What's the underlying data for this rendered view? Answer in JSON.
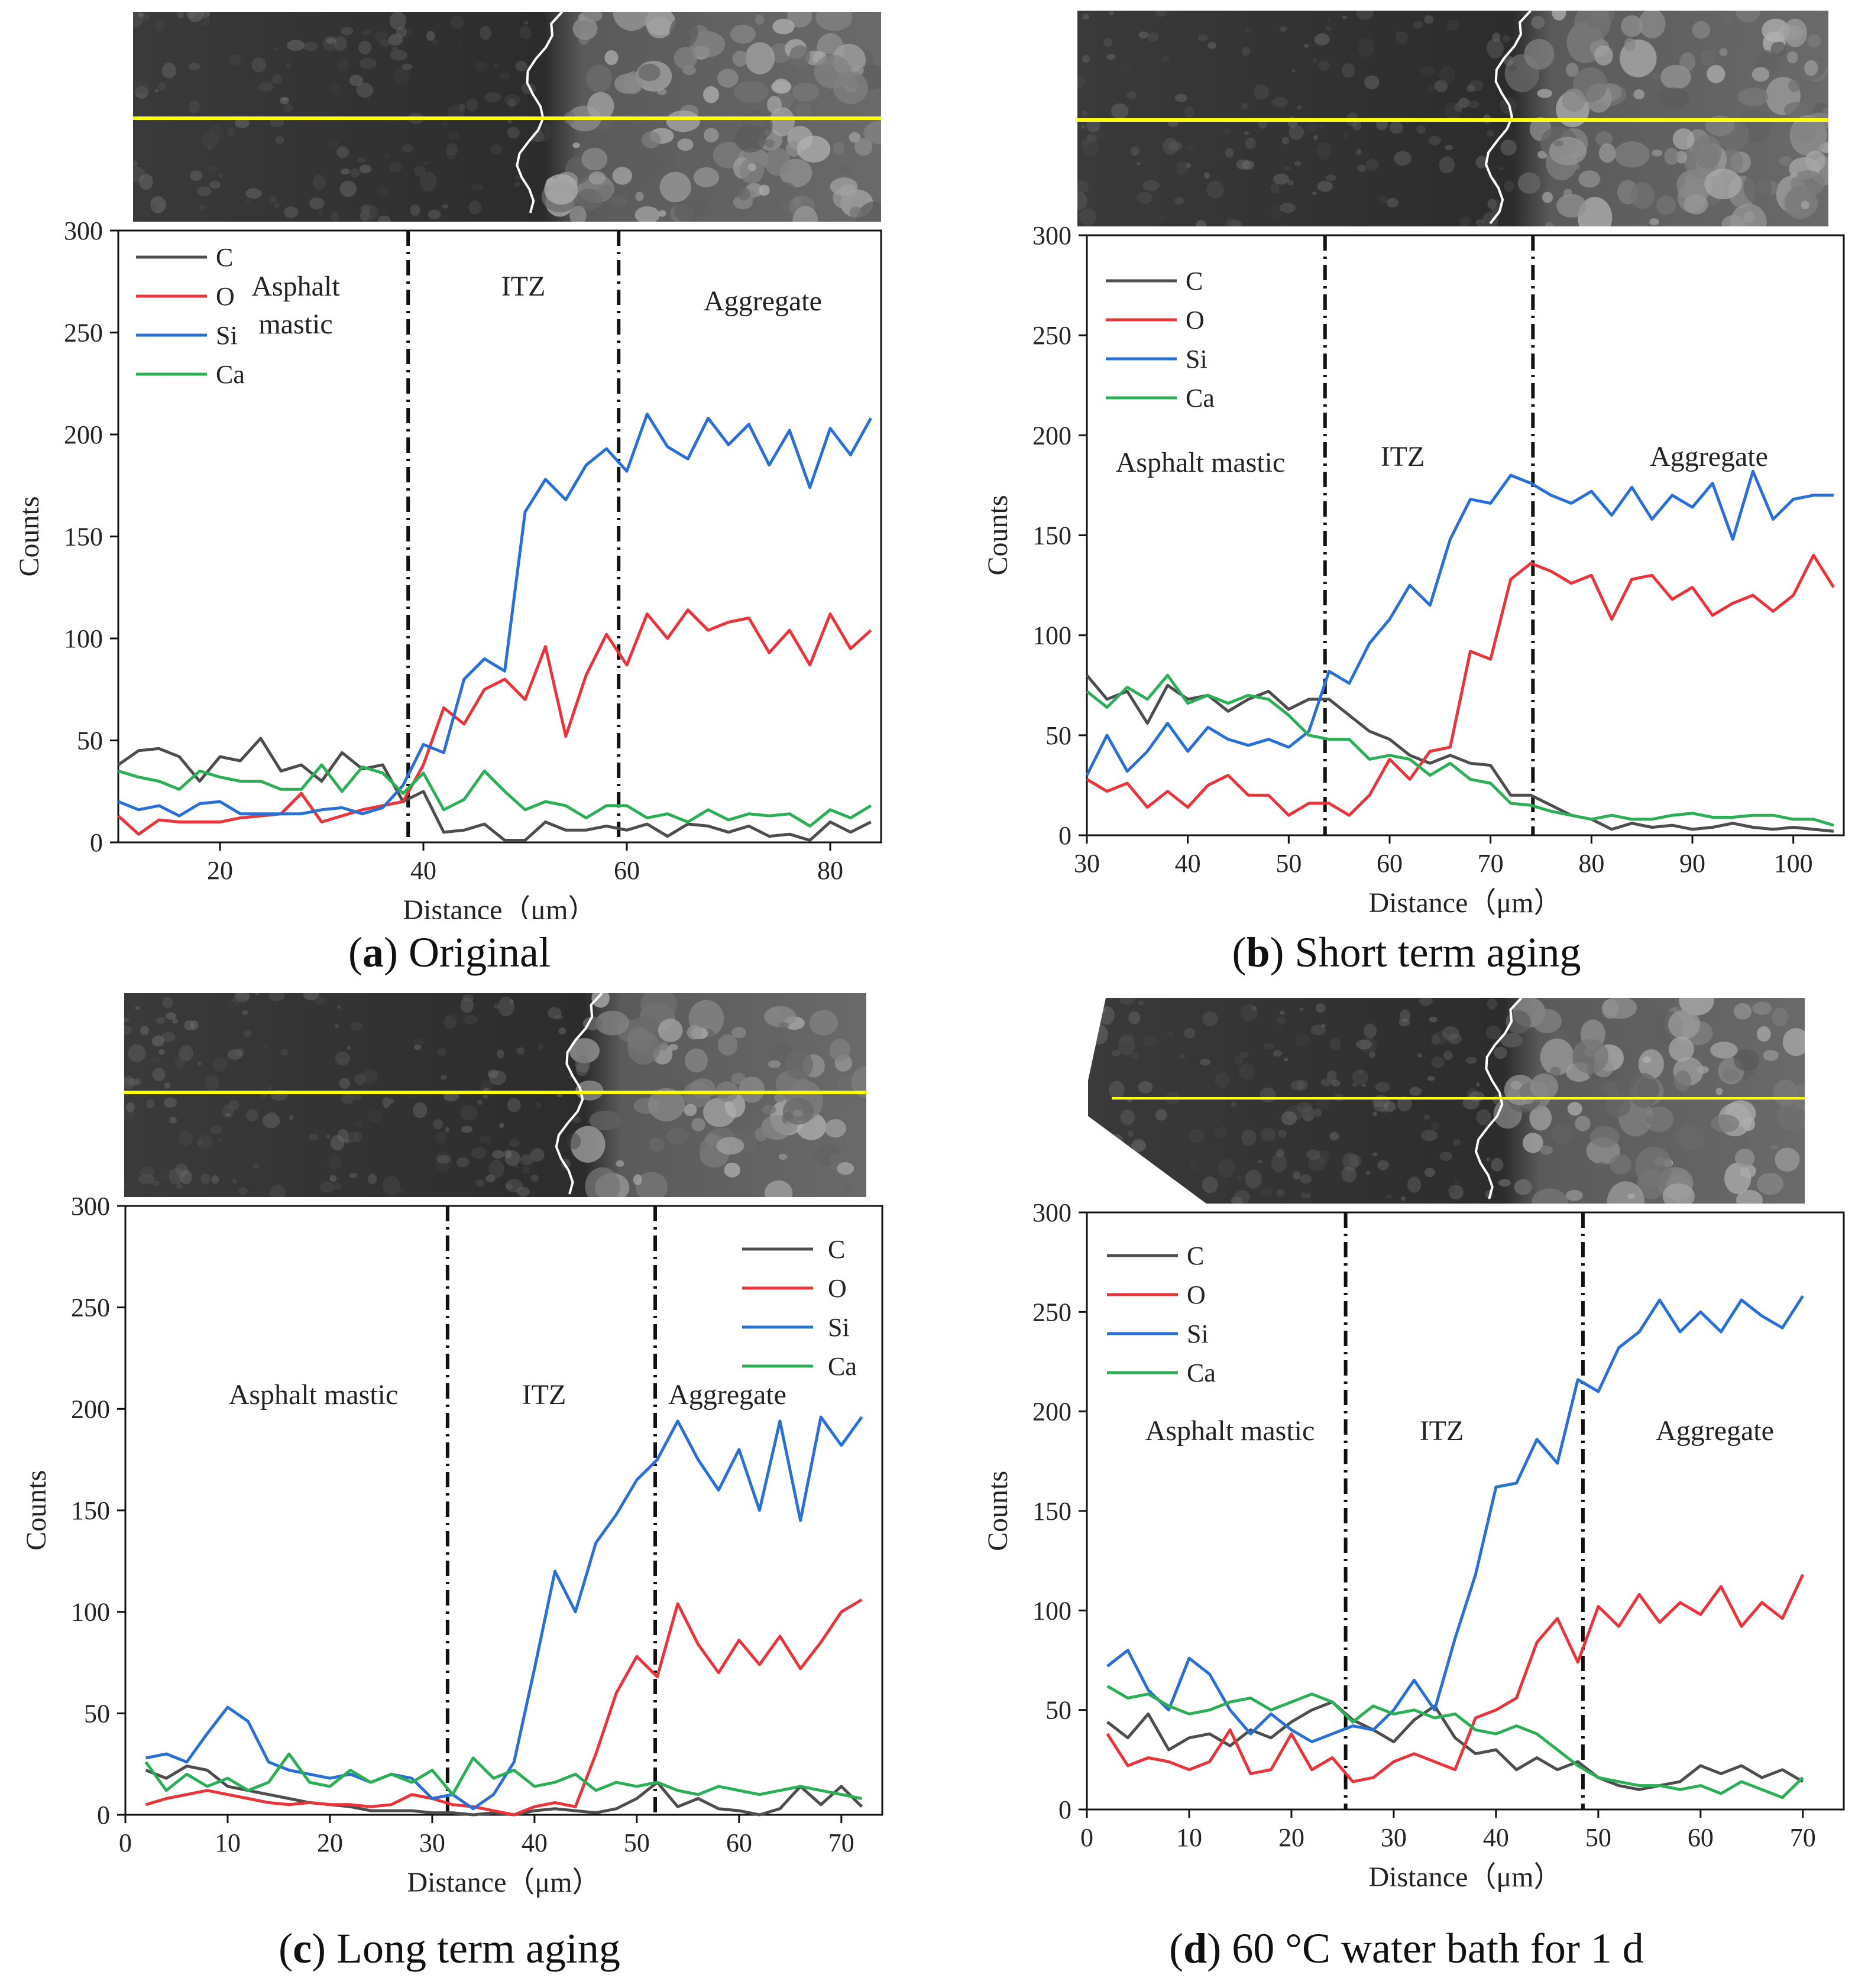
{
  "colors": {
    "C": "#4d4d4d",
    "O": "#e8343a",
    "Si": "#2a6fd6",
    "Ca": "#2cae56",
    "scan_line": "#ffff00",
    "interface_line": "#ffffff"
  },
  "legend": {
    "items": [
      "C",
      "O",
      "Si",
      "Ca"
    ]
  },
  "panels": [
    {
      "id": "a",
      "caption_letter": "a",
      "caption_text": " Original",
      "chart_data": {
        "type": "line",
        "title": "Original",
        "xlabel": "Distance（μm）",
        "ylabel": "Counts",
        "xlim": [
          10,
          85
        ],
        "ylim": [
          0,
          300
        ],
        "xticks": [
          20,
          40,
          60,
          80
        ],
        "yticks": [
          0,
          50,
          100,
          150,
          200,
          250,
          300
        ],
        "zone_boundaries": [
          38.5,
          59.2
        ],
        "zones": [
          "Asphalt mastic",
          "ITZ",
          "Aggregate"
        ],
        "legend_position": "top-left",
        "x": [
          10,
          12,
          14,
          16,
          18,
          20,
          22,
          24,
          26,
          28,
          30,
          32,
          34,
          36,
          38,
          40,
          42,
          44,
          46,
          48,
          50,
          52,
          54,
          56,
          58,
          60,
          62,
          64,
          66,
          68,
          70,
          72,
          74,
          76,
          78,
          80,
          82,
          84
        ],
        "series": [
          {
            "name": "C",
            "values": [
              38,
              45,
              46,
              42,
              30,
              42,
              40,
              51,
              35,
              38,
              30,
              44,
              36,
              38,
              20,
              25,
              5,
              6,
              9,
              1,
              1,
              10,
              6,
              6,
              8,
              6,
              9,
              3,
              9,
              8,
              5,
              8,
              3,
              4,
              1,
              10,
              5,
              10
            ]
          },
          {
            "name": "O",
            "values": [
              13,
              4,
              11,
              10,
              10,
              10,
              12,
              13,
              14,
              24,
              10,
              13,
              16,
              18,
              20,
              38,
              66,
              58,
              75,
              80,
              70,
              96,
              52,
              82,
              102,
              87,
              112,
              100,
              114,
              104,
              108,
              110,
              93,
              104,
              87,
              112,
              95,
              104
            ]
          },
          {
            "name": "Si",
            "values": [
              20,
              16,
              18,
              13,
              19,
              20,
              14,
              14,
              14,
              14,
              16,
              17,
              14,
              17,
              28,
              48,
              44,
              80,
              90,
              84,
              162,
              178,
              168,
              185,
              193,
              182,
              210,
              194,
              188,
              208,
              195,
              205,
              185,
              202,
              174,
              203,
              190,
              208
            ]
          },
          {
            "name": "Ca",
            "values": [
              35,
              32,
              30,
              26,
              35,
              32,
              30,
              30,
              26,
              26,
              38,
              25,
              37,
              34,
              24,
              34,
              16,
              21,
              35,
              25,
              16,
              20,
              18,
              12,
              18,
              18,
              12,
              14,
              10,
              16,
              11,
              14,
              13,
              14,
              8,
              16,
              12,
              18
            ]
          }
        ]
      }
    },
    {
      "id": "b",
      "caption_letter": "b",
      "caption_text": " Short term aging",
      "chart_data": {
        "type": "line",
        "title": "Short term aging",
        "xlabel": "Distance（μm）",
        "ylabel": "Counts",
        "xlim": [
          30,
          105
        ],
        "ylim": [
          0,
          300
        ],
        "xticks": [
          30,
          40,
          50,
          60,
          70,
          80,
          90,
          100
        ],
        "yticks": [
          0,
          50,
          100,
          150,
          200,
          250,
          300
        ],
        "zone_boundaries": [
          53.6,
          74.2
        ],
        "zones": [
          "Asphalt mastic",
          "ITZ",
          "Aggregate"
        ],
        "legend_position": "top-left",
        "x": [
          30,
          32,
          34,
          36,
          38,
          40,
          42,
          44,
          46,
          48,
          50,
          52,
          54,
          56,
          58,
          60,
          62,
          64,
          66,
          68,
          70,
          72,
          74,
          76,
          78,
          80,
          82,
          84,
          86,
          88,
          90,
          92,
          94,
          96,
          98,
          100,
          102,
          104
        ],
        "series": [
          {
            "name": "C",
            "values": [
              80,
              68,
              72,
              56,
              75,
              68,
              70,
              62,
              68,
              72,
              63,
              68,
              68,
              60,
              52,
              48,
              40,
              36,
              40,
              36,
              35,
              20,
              20,
              15,
              10,
              8,
              3,
              6,
              4,
              5,
              3,
              4,
              6,
              4,
              3,
              4,
              3,
              2
            ]
          },
          {
            "name": "O",
            "values": [
              28,
              22,
              26,
              14,
              22,
              14,
              25,
              30,
              20,
              20,
              10,
              16,
              16,
              10,
              20,
              38,
              28,
              42,
              44,
              92,
              88,
              128,
              136,
              132,
              126,
              130,
              108,
              128,
              130,
              118,
              124,
              110,
              116,
              120,
              112,
              120,
              140,
              124
            ]
          },
          {
            "name": "Si",
            "values": [
              30,
              50,
              32,
              42,
              56,
              42,
              54,
              48,
              45,
              48,
              44,
              52,
              82,
              76,
              96,
              108,
              125,
              115,
              148,
              168,
              166,
              180,
              176,
              170,
              166,
              172,
              160,
              174,
              158,
              170,
              164,
              176,
              148,
              182,
              158,
              168,
              170,
              170
            ]
          },
          {
            "name": "Ca",
            "values": [
              72,
              64,
              74,
              68,
              80,
              66,
              70,
              66,
              70,
              68,
              60,
              50,
              48,
              48,
              38,
              40,
              38,
              30,
              36,
              28,
              26,
              16,
              15,
              12,
              10,
              8,
              10,
              8,
              8,
              10,
              11,
              9,
              9,
              10,
              10,
              8,
              8,
              5
            ]
          }
        ]
      }
    },
    {
      "id": "c",
      "caption_letter": "c",
      "caption_text": " Long term aging",
      "chart_data": {
        "type": "line",
        "title": "Long term aging",
        "xlabel": "Distance（μm）",
        "ylabel": "Counts",
        "xlim": [
          0,
          74
        ],
        "ylim": [
          0,
          300
        ],
        "xticks": [
          0,
          10,
          20,
          30,
          40,
          50,
          60,
          70
        ],
        "yticks": [
          0,
          50,
          100,
          150,
          200,
          250,
          300
        ],
        "zone_boundaries": [
          31.5,
          51.8
        ],
        "zones": [
          "Asphalt mastic",
          "ITZ",
          "Aggregate"
        ],
        "legend_position": "top-right",
        "x": [
          2,
          4,
          6,
          8,
          10,
          12,
          14,
          16,
          18,
          20,
          22,
          24,
          26,
          28,
          30,
          32,
          34,
          36,
          38,
          40,
          42,
          44,
          46,
          48,
          50,
          52,
          54,
          56,
          58,
          60,
          62,
          64,
          66,
          68,
          70,
          72
        ],
        "series": [
          {
            "name": "C",
            "values": [
              22,
              18,
              24,
              22,
              14,
              12,
              10,
              8,
              6,
              5,
              4,
              2,
              2,
              2,
              1,
              1,
              0,
              1,
              0,
              2,
              3,
              2,
              1,
              3,
              8,
              16,
              4,
              8,
              3,
              2,
              0,
              3,
              14,
              5,
              14,
              4
            ]
          },
          {
            "name": "O",
            "values": [
              5,
              8,
              10,
              12,
              10,
              8,
              6,
              5,
              6,
              5,
              5,
              4,
              5,
              10,
              8,
              5,
              4,
              2,
              0,
              4,
              6,
              4,
              30,
              60,
              78,
              68,
              104,
              84,
              70,
              86,
              74,
              88,
              72,
              85,
              100,
              106
            ]
          },
          {
            "name": "Si",
            "values": [
              28,
              30,
              26,
              40,
              53,
              46,
              26,
              22,
              20,
              18,
              20,
              16,
              20,
              18,
              8,
              10,
              3,
              10,
              26,
              72,
              120,
              100,
              134,
              148,
              165,
              175,
              194,
              175,
              160,
              180,
              150,
              194,
              145,
              196,
              182,
              196
            ]
          },
          {
            "name": "Ca",
            "values": [
              26,
              12,
              20,
              14,
              18,
              12,
              16,
              30,
              16,
              14,
              22,
              16,
              20,
              16,
              22,
              10,
              28,
              18,
              22,
              14,
              16,
              20,
              12,
              16,
              14,
              16,
              12,
              10,
              14,
              12,
              10,
              12,
              14,
              12,
              10,
              8
            ]
          }
        ]
      }
    },
    {
      "id": "d",
      "caption_letter": "d",
      "caption_text": " 60 °C water bath for 1 d",
      "chart_data": {
        "type": "line",
        "title": "60 °C water bath for 1 d",
        "xlabel": "Distance（μm）",
        "ylabel": "Counts",
        "xlim": [
          0,
          74
        ],
        "ylim": [
          0,
          300
        ],
        "xticks": [
          0,
          10,
          20,
          30,
          40,
          50,
          60,
          70
        ],
        "yticks": [
          0,
          50,
          100,
          150,
          200,
          250,
          300
        ],
        "zone_boundaries": [
          25.3,
          48.5
        ],
        "zones": [
          "Asphalt mastic",
          "ITZ",
          "Aggregate"
        ],
        "legend_position": "top-left",
        "x": [
          2,
          4,
          6,
          8,
          10,
          12,
          14,
          16,
          18,
          20,
          22,
          24,
          26,
          28,
          30,
          32,
          34,
          36,
          38,
          40,
          42,
          44,
          46,
          48,
          50,
          52,
          54,
          56,
          58,
          60,
          62,
          64,
          66,
          68,
          70
        ],
        "series": [
          {
            "name": "C",
            "values": [
              44,
              36,
              48,
              30,
              36,
              38,
              32,
              40,
              36,
              44,
              50,
              54,
              45,
              40,
              34,
              45,
              52,
              36,
              28,
              30,
              20,
              26,
              20,
              24,
              16,
              12,
              10,
              12,
              14,
              22,
              18,
              22,
              16,
              20,
              14
            ]
          },
          {
            "name": "O",
            "values": [
              38,
              22,
              26,
              24,
              20,
              24,
              40,
              18,
              20,
              38,
              20,
              26,
              14,
              16,
              24,
              28,
              24,
              20,
              46,
              50,
              56,
              84,
              96,
              74,
              102,
              92,
              108,
              94,
              104,
              98,
              112,
              92,
              104,
              96,
              118
            ]
          },
          {
            "name": "Si",
            "values": [
              72,
              80,
              60,
              50,
              76,
              68,
              50,
              38,
              48,
              40,
              34,
              38,
              42,
              40,
              50,
              65,
              50,
              86,
              118,
              162,
              164,
              186,
              174,
              216,
              210,
              232,
              240,
              256,
              240,
              250,
              240,
              256,
              248,
              242,
              258
            ]
          },
          {
            "name": "Ca",
            "values": [
              62,
              56,
              58,
              52,
              48,
              50,
              54,
              56,
              50,
              54,
              58,
              54,
              44,
              52,
              48,
              50,
              46,
              48,
              40,
              38,
              42,
              38,
              30,
              22,
              16,
              14,
              12,
              12,
              10,
              12,
              8,
              14,
              10,
              6,
              16
            ]
          }
        ]
      }
    }
  ]
}
